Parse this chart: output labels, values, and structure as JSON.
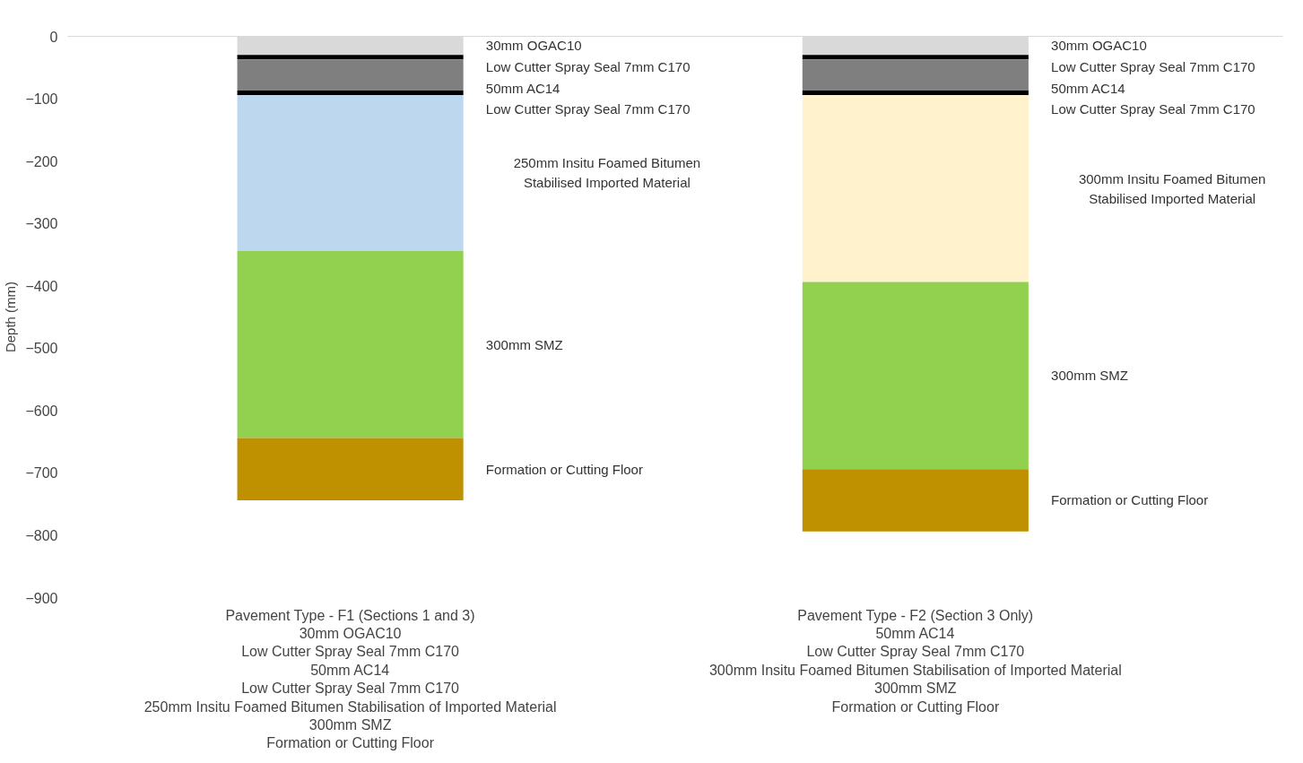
{
  "chart_data": {
    "type": "bar",
    "stacked": true,
    "ylabel": "Depth (mm)",
    "categories": [
      "Pavement Type - F1 (Sections 1 and 3)\n30mm OGAC10\nLow Cutter Spray Seal 7mm C170\n50mm AC14\nLow Cutter Spray Seal 7mm C170\n250mm Insitu Foamed Bitumen Stabilisation of Imported Material\n300mm SMZ\nFormation or Cutting Floor",
      "Pavement Type - F2 (Section 3 Only)\n50mm AC14\nLow Cutter Spray Seal 7mm C170\n300mm Insitu Foamed Bitumen Stabilisation of Imported Material\n300mm SMZ\nFormation or Cutting Floor"
    ],
    "series": [
      {
        "name": "30mm OGAC10",
        "color": "#d9d9d9",
        "values": [
          -30,
          -30
        ]
      },
      {
        "name": "Low Cutter Spray Seal 7mm C170",
        "color": "#000000",
        "values": [
          -7,
          -7
        ]
      },
      {
        "name": "50mm AC14",
        "color": "#7f7f7f",
        "values": [
          -50,
          -50
        ]
      },
      {
        "name": "Low Cutter Spray Seal 7mm C170",
        "color": "#000000",
        "values": [
          -7,
          -7
        ]
      },
      {
        "name": "250mm Insitu Foamed Bitumen\nStabilised Imported Material",
        "color": "#bdd7ee",
        "values": [
          -250,
          null
        ]
      },
      {
        "name": "300mm Insitu Foamed Bitumen\nStabilised Imported Material",
        "color": "#fff2cc",
        "values": [
          null,
          -300
        ]
      },
      {
        "name": "300mm SMZ",
        "color": "#92d050",
        "values": [
          -300,
          -300
        ]
      },
      {
        "name": "Formation or Cutting Floor",
        "color": "#bf9000",
        "values": [
          -100,
          -100
        ]
      }
    ],
    "ylim": [
      -900,
      0
    ],
    "yticks": [
      0,
      -100,
      -200,
      -300,
      -400,
      -500,
      -600,
      -700,
      -800,
      -900
    ],
    "grid": false,
    "legend": false
  }
}
